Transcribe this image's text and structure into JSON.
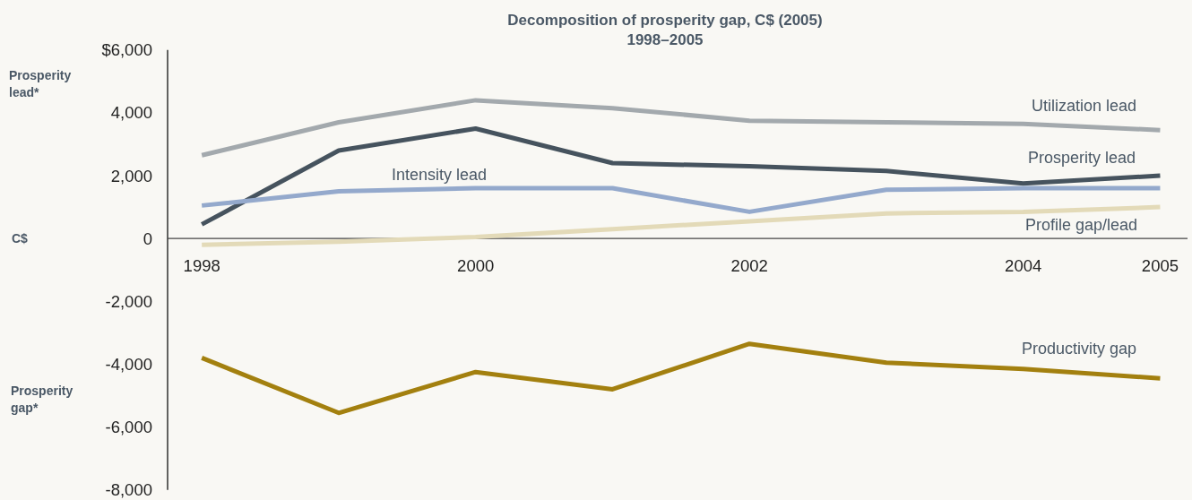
{
  "chart_data": {
    "type": "line",
    "title": "Decomposition of prosperity gap, C$ (2005)",
    "subtitle": "1998–2005",
    "annotations": [
      "Prosperity lead*",
      "C$",
      "Prosperity gap*"
    ],
    "x": [
      1998,
      1999,
      2000,
      2001,
      2002,
      2003,
      2004,
      2005
    ],
    "xlim": [
      1997.75,
      2005.2
    ],
    "xticks": [
      1998,
      2000,
      2002,
      2004,
      2005
    ],
    "ylim": [
      -8000,
      6000
    ],
    "yticks": [
      {
        "value": 6000,
        "label": "$6,000"
      },
      {
        "value": 4000,
        "label": "4,000"
      },
      {
        "value": 2000,
        "label": "2,000"
      },
      0,
      {
        "value": -2000,
        "label": "-2,000"
      },
      {
        "value": -4000,
        "label": "-4,000"
      },
      {
        "value": -6000,
        "label": "-6,000"
      },
      {
        "value": -8000,
        "label": "-8,000"
      }
    ],
    "series": [
      {
        "name": "Utilization lead",
        "color": "#a3a9ad",
        "values": [
          2650,
          3700,
          4400,
          4150,
          3750,
          3700,
          3650,
          3450
        ]
      },
      {
        "name": "Prosperity lead",
        "color": "#46535e",
        "values": [
          450,
          2800,
          3500,
          2400,
          2300,
          2150,
          1750,
          2000
        ]
      },
      {
        "name": "Intensity lead",
        "color": "#94a9cc",
        "values": [
          1050,
          1500,
          1600,
          1600,
          850,
          1550,
          1600,
          1600
        ]
      },
      {
        "name": "Profile gap/lead",
        "color": "#e3dab8",
        "values": [
          -200,
          -100,
          50,
          300,
          550,
          800,
          850,
          1000
        ]
      },
      {
        "name": "Productivity gap",
        "color": "#a3800f",
        "values": [
          -3800,
          -5550,
          -4250,
          -4800,
          -3350,
          -3950,
          -4150,
          -4450
        ]
      }
    ]
  }
}
